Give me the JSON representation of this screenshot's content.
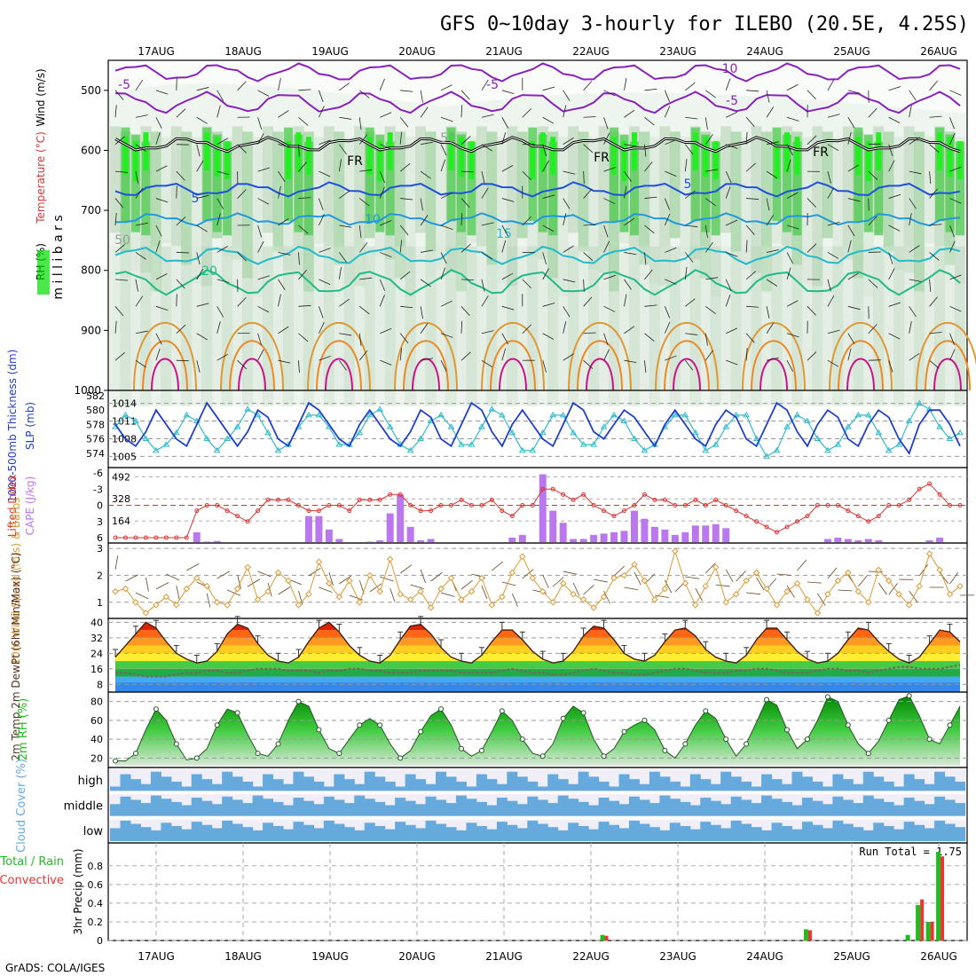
{
  "title": "GFS 0~10day 3-hourly for ILEBO (20.5E, 4.25S)",
  "credit": "GrADS: COLA/IGES",
  "dates": [
    "17AUG",
    "18AUG",
    "19AUG",
    "20AUG",
    "21AUG",
    "22AUG",
    "23AUG",
    "24AUG",
    "25AUG",
    "26AUG"
  ],
  "colors": {
    "green": "#00dd00",
    "rain": "#22bb22",
    "convective": "#ee3333",
    "cape": "#bb77ee",
    "lifted": "#dd3333",
    "slp": "#33bbcc",
    "thickness": "#1e3fcc",
    "wind": "#dd9933",
    "cloud": "#66aadd",
    "rh": "#22bb22"
  },
  "chart_data": [
    {
      "type": "heatmap",
      "panel": "upper_air",
      "ylabel_rh": "RH (%)",
      "ylabel_temp": "Temperature (°C)",
      "ylabel_wind": "Wind (m/s)",
      "ylabel_units": "m i l l i b a r s",
      "yticks": [
        500,
        600,
        700,
        800,
        900,
        1000
      ],
      "ylim": [
        1000,
        450
      ],
      "contour_labels": [
        "-5",
        "-5",
        "-10",
        "-5",
        "5",
        "5",
        "10",
        "15",
        "20",
        "FR",
        "FR",
        "FR",
        "50",
        "50"
      ]
    },
    {
      "type": "line",
      "panel": "thickness_slp",
      "ylabel_thickness": "1000-500mb Thickness (dm)",
      "ylabel_slp": "SLP (mb)",
      "thickness_ticks": [
        "582",
        "580",
        "578",
        "576",
        "574"
      ],
      "slp_ticks": [
        "1014",
        "1011",
        "1008",
        "1005"
      ],
      "series": [
        {
          "name": "Thickness",
          "values": [
            578,
            576,
            575,
            577,
            580,
            578,
            576,
            575,
            578,
            581,
            579,
            577,
            575,
            577,
            580,
            579,
            576,
            575,
            578,
            581,
            580,
            578,
            576,
            575,
            578,
            580,
            578,
            576,
            575,
            577,
            580,
            579,
            576,
            575,
            578,
            581,
            580,
            577,
            575,
            578,
            580,
            578,
            576,
            575,
            578,
            581,
            580,
            577,
            576,
            578,
            580,
            579,
            577,
            575,
            578,
            580,
            578,
            576,
            575,
            578,
            580,
            579,
            576,
            575,
            578,
            581,
            580,
            577,
            575,
            578,
            580,
            579,
            576,
            575,
            578,
            580,
            579,
            576,
            574,
            578,
            580,
            580,
            578,
            575
          ]
        },
        {
          "name": "SLP",
          "values": [
            1010,
            1012,
            1011,
            1008,
            1006,
            1007,
            1009,
            1012,
            1011,
            1008,
            1006,
            1008,
            1010,
            1013,
            1012,
            1009,
            1006,
            1007,
            1010,
            1012,
            1012,
            1010,
            1007,
            1007,
            1009,
            1012,
            1013,
            1010,
            1007,
            1006,
            1008,
            1011,
            1012,
            1010,
            1007,
            1007,
            1010,
            1013,
            1012,
            1009,
            1006,
            1006,
            1009,
            1012,
            1012,
            1009,
            1007,
            1007,
            1010,
            1012,
            1011,
            1008,
            1006,
            1007,
            1010,
            1012,
            1012,
            1009,
            1006,
            1007,
            1010,
            1012,
            1012,
            1008,
            1005,
            1006,
            1010,
            1012,
            1011,
            1008,
            1006,
            1007,
            1010,
            1012,
            1012,
            1009,
            1006,
            1007,
            1011,
            1014,
            1013,
            1010,
            1008,
            1009
          ]
        }
      ]
    },
    {
      "type": "bar",
      "panel": "cape_li",
      "ylabel_li": "Lifted Index",
      "ylabel_cape": "CAPE (J/kg)",
      "li_ticks": [
        "-6",
        "-3",
        "0",
        "3",
        "6"
      ],
      "cape_ticks": [
        "492",
        "328",
        "164"
      ],
      "cape_values": [
        0,
        0,
        0,
        0,
        0,
        0,
        0,
        0,
        80,
        10,
        15,
        0,
        0,
        0,
        0,
        0,
        0,
        0,
        0,
        200,
        200,
        100,
        30,
        0,
        0,
        10,
        20,
        220,
        360,
        120,
        20,
        30,
        0,
        0,
        0,
        0,
        0,
        0,
        0,
        40,
        60,
        0,
        510,
        240,
        150,
        30,
        30,
        60,
        70,
        80,
        90,
        240,
        180,
        120,
        100,
        60,
        80,
        130,
        130,
        140,
        110,
        0,
        0,
        0,
        0,
        0,
        0,
        0,
        0,
        0,
        30,
        40,
        30,
        20,
        30,
        20,
        0,
        0,
        0,
        0,
        20,
        40,
        0,
        0
      ],
      "li_values": [
        6,
        6,
        6,
        6,
        6,
        6,
        6,
        6,
        1,
        0,
        0,
        1,
        2,
        3,
        1,
        -1,
        -1,
        -1,
        0,
        1,
        1,
        0,
        0,
        1,
        -1,
        -1,
        -1,
        -2,
        -2,
        0,
        1,
        1,
        0,
        0,
        -1,
        0,
        0,
        -1,
        1,
        2,
        0,
        0,
        -3,
        -3,
        -2,
        -1,
        -2,
        0,
        1,
        2,
        1,
        0,
        -2,
        -1,
        -1,
        0,
        0,
        -1,
        0,
        -1,
        0,
        1,
        2,
        3,
        4,
        5,
        4,
        3,
        2,
        0,
        0,
        0,
        1,
        2,
        3,
        2,
        0,
        0,
        -1,
        -3,
        -4,
        -2,
        0,
        0
      ]
    },
    {
      "type": "line",
      "panel": "wind10m",
      "ylabel": "10m Wind Speed (m/s) & Barbs",
      "yticks": [
        "3",
        "2",
        "1"
      ],
      "ylim": [
        0.4,
        3.2
      ],
      "values": [
        1.4,
        1.5,
        1.0,
        0.6,
        0.9,
        1.2,
        0.9,
        1.5,
        1.9,
        1.6,
        1.0,
        0.9,
        1.5,
        2.3,
        1.1,
        1.4,
        2.1,
        1.8,
        0.9,
        1.3,
        2.5,
        1.7,
        1.2,
        1.8,
        1.0,
        2.0,
        1.4,
        2.6,
        1.3,
        1.1,
        1.4,
        0.8,
        1.5,
        1.9,
        1.1,
        1.4,
        1.9,
        0.9,
        1.2,
        2.1,
        2.7,
        1.9,
        1.4,
        1.0,
        1.7,
        1.3,
        1.1,
        0.8,
        1.2,
        1.9,
        2.0,
        2.4,
        1.8,
        1.1,
        1.5,
        2.9,
        1.7,
        0.9,
        1.6,
        2.3,
        1.0,
        1.3,
        1.8,
        2.1,
        1.5,
        0.9,
        1.4,
        1.7,
        1.1,
        0.6,
        1.3,
        1.8,
        2.1,
        1.4,
        1.0,
        2.2,
        1.8,
        1.3,
        0.9,
        1.6,
        2.8,
        2.2,
        1.3,
        1.6
      ]
    },
    {
      "type": "area",
      "panel": "temp2m",
      "ylabel": "2m Temp 2m DewPt (6hr Min/Max) (°C)",
      "yticks": [
        "40",
        "32",
        "24",
        "16",
        "8"
      ],
      "ylim": [
        4,
        42
      ],
      "temp": [
        22,
        28,
        34,
        40,
        37,
        30,
        24,
        21,
        19,
        20,
        25,
        34,
        39,
        37,
        29,
        23,
        20,
        19,
        22,
        30,
        37,
        40,
        35,
        28,
        23,
        20,
        19,
        23,
        31,
        38,
        39,
        34,
        27,
        22,
        20,
        19,
        23,
        30,
        36,
        36,
        31,
        25,
        21,
        19,
        20,
        25,
        33,
        38,
        37,
        31,
        24,
        21,
        20,
        23,
        30,
        36,
        37,
        33,
        26,
        22,
        20,
        19,
        23,
        31,
        37,
        37,
        31,
        25,
        21,
        19,
        20,
        24,
        31,
        37,
        36,
        30,
        25,
        21,
        19,
        22,
        29,
        36,
        35,
        30
      ],
      "dewpoint": [
        14,
        14,
        13,
        12,
        12,
        12,
        13,
        14,
        14,
        15,
        15,
        14,
        14,
        15,
        16,
        16,
        16,
        15,
        15,
        15,
        14,
        15,
        15,
        16,
        16,
        15,
        15,
        14,
        14,
        14,
        15,
        15,
        15,
        15,
        14,
        14,
        14,
        14,
        15,
        16,
        15,
        14,
        14,
        13,
        13,
        14,
        15,
        16,
        15,
        14,
        14,
        13,
        13,
        14,
        15,
        16,
        16,
        15,
        14,
        14,
        14,
        15,
        15,
        16,
        16,
        15,
        14,
        14,
        14,
        15,
        16,
        16,
        15,
        15,
        14,
        15,
        16,
        17,
        17,
        16,
        16,
        16,
        17,
        18
      ]
    },
    {
      "type": "area",
      "panel": "rh2m",
      "ylabel": "2m RH (%)",
      "yticks": [
        "80",
        "60",
        "40",
        "20"
      ],
      "ylim": [
        10,
        90
      ],
      "values": [
        17,
        17,
        25,
        50,
        72,
        60,
        35,
        18,
        20,
        30,
        55,
        72,
        68,
        45,
        25,
        22,
        35,
        60,
        80,
        75,
        50,
        30,
        25,
        40,
        55,
        62,
        55,
        35,
        20,
        28,
        48,
        65,
        72,
        55,
        30,
        22,
        28,
        48,
        70,
        60,
        40,
        25,
        22,
        35,
        62,
        75,
        68,
        40,
        22,
        30,
        48,
        55,
        60,
        50,
        28,
        20,
        35,
        55,
        70,
        62,
        40,
        22,
        35,
        58,
        82,
        76,
        50,
        30,
        40,
        60,
        85,
        80,
        55,
        35,
        25,
        38,
        60,
        82,
        86,
        65,
        40,
        35,
        55,
        75
      ]
    },
    {
      "type": "bar",
      "panel": "cloud",
      "ylabel": "Cloud Cover (%)",
      "levels": [
        "high",
        "middle",
        "low"
      ]
    },
    {
      "type": "bar",
      "panel": "precip",
      "ylabel_total": "Total / Rain",
      "ylabel_conv": "Convective",
      "ylabel_units": "3hr Precip (mm)",
      "run_total": "Run Total = 1.75",
      "yticks": [
        "0.8",
        "0.6",
        "0.4",
        "0.2",
        "0"
      ],
      "ylim": [
        0,
        0.95
      ],
      "bars": [
        {
          "idx": 48,
          "total": 0.06,
          "conv": 0.05
        },
        {
          "idx": 68,
          "total": 0.12,
          "conv": 0.11
        },
        {
          "idx": 78,
          "total": 0.06,
          "conv": 0.0
        },
        {
          "idx": 79,
          "total": 0.38,
          "conv": 0.44
        },
        {
          "idx": 80,
          "total": 0.2,
          "conv": 0.2
        },
        {
          "idx": 81,
          "total": 0.95,
          "conv": 0.9
        }
      ]
    }
  ]
}
